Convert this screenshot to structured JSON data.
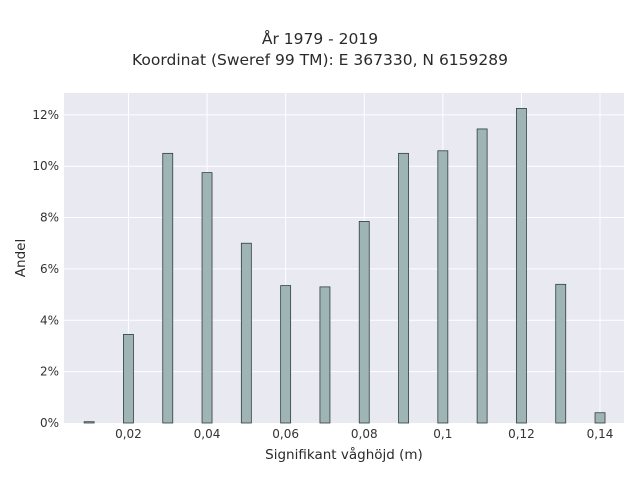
{
  "chart_data": {
    "type": "bar",
    "title_lines": [
      "År 1979 - 2019",
      "Koordinat (Sweref 99 TM): E 367330, N 6159289"
    ],
    "xlabel": "Signifikant våghöjd (m)",
    "ylabel": "Andel",
    "x": [
      0.01,
      0.02,
      0.03,
      0.04,
      0.05,
      0.06,
      0.07,
      0.08,
      0.09,
      0.1,
      0.11,
      0.12,
      0.13,
      0.14
    ],
    "values": [
      0.05,
      3.45,
      10.5,
      9.75,
      7.0,
      5.35,
      5.3,
      7.85,
      10.5,
      10.6,
      11.45,
      12.25,
      5.4,
      0.4
    ],
    "xlim": [
      0.0036,
      0.1461
    ],
    "ylim": [
      0,
      12.85
    ],
    "x_ticks": [
      {
        "value": 0.02,
        "label": "0,02"
      },
      {
        "value": 0.04,
        "label": "0,04"
      },
      {
        "value": 0.06,
        "label": "0,06"
      },
      {
        "value": 0.08,
        "label": "0,08"
      },
      {
        "value": 0.1,
        "label": "0,1"
      },
      {
        "value": 0.12,
        "label": "0,12"
      },
      {
        "value": 0.14,
        "label": "0,14"
      }
    ],
    "y_ticks": [
      {
        "value": 0,
        "label": "0%"
      },
      {
        "value": 2,
        "label": "2%"
      },
      {
        "value": 4,
        "label": "4%"
      },
      {
        "value": 6,
        "label": "6%"
      },
      {
        "value": 8,
        "label": "8%"
      },
      {
        "value": 10,
        "label": "10%"
      },
      {
        "value": 12,
        "label": "12%"
      }
    ],
    "grid": true,
    "colors": {
      "bar_fill": "#9fb4b5",
      "bar_stroke": "#2f3f3f",
      "plot_bg": "#e9e9f1",
      "grid": "#ffffff"
    }
  }
}
